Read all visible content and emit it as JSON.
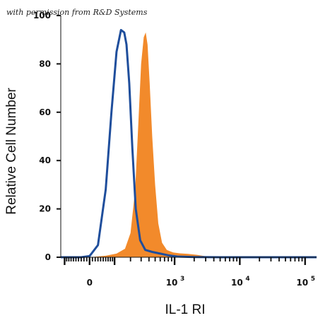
{
  "credit": "with permission from R&D Systems",
  "chart_data": {
    "type": "area",
    "xlabel": "IL-1 RI",
    "ylabel": "Relative Cell Number",
    "x_scale": "biexponential",
    "xlim": [
      -120,
      150000
    ],
    "ylim": [
      0,
      100
    ],
    "yticks": [
      0,
      20,
      40,
      60,
      80,
      100
    ],
    "xticks": [
      {
        "value": 0,
        "base": "0",
        "exp": ""
      },
      {
        "value": 1000,
        "base": "10",
        "exp": "3"
      },
      {
        "value": 10000,
        "base": "10",
        "exp": "4"
      },
      {
        "value": 100000,
        "base": "10",
        "exp": "5"
      }
    ],
    "series": [
      {
        "style": "filled",
        "color": "#f28a2b",
        "points": [
          [
            0,
            0
          ],
          [
            60,
            0.6
          ],
          [
            110,
            1.5
          ],
          [
            160,
            3.5
          ],
          [
            200,
            10
          ],
          [
            240,
            28
          ],
          [
            270,
            55
          ],
          [
            300,
            80
          ],
          [
            330,
            91
          ],
          [
            355,
            93
          ],
          [
            380,
            88
          ],
          [
            410,
            72
          ],
          [
            450,
            50
          ],
          [
            500,
            30
          ],
          [
            560,
            14
          ],
          [
            640,
            6
          ],
          [
            760,
            3
          ],
          [
            950,
            2
          ],
          [
            1200,
            1.6
          ],
          [
            1600,
            1.4
          ],
          [
            2200,
            1.0
          ],
          [
            3000,
            0.4
          ],
          [
            4500,
            0.1
          ],
          [
            8000,
            0
          ],
          [
            150000,
            0
          ]
        ]
      },
      {
        "style": "line",
        "color": "#1f4e9c",
        "points": [
          [
            -120,
            0
          ],
          [
            -30,
            0
          ],
          [
            0,
            0.5
          ],
          [
            30,
            5
          ],
          [
            60,
            28
          ],
          [
            85,
            60
          ],
          [
            110,
            85
          ],
          [
            135,
            94
          ],
          [
            155,
            93
          ],
          [
            170,
            88
          ],
          [
            190,
            72
          ],
          [
            215,
            45
          ],
          [
            245,
            20
          ],
          [
            290,
            7
          ],
          [
            350,
            3
          ],
          [
            450,
            2.2
          ],
          [
            600,
            1.5
          ],
          [
            800,
            0.8
          ],
          [
            1100,
            0.3
          ],
          [
            2000,
            0.1
          ],
          [
            5000,
            0
          ],
          [
            150000,
            0
          ]
        ]
      }
    ]
  }
}
